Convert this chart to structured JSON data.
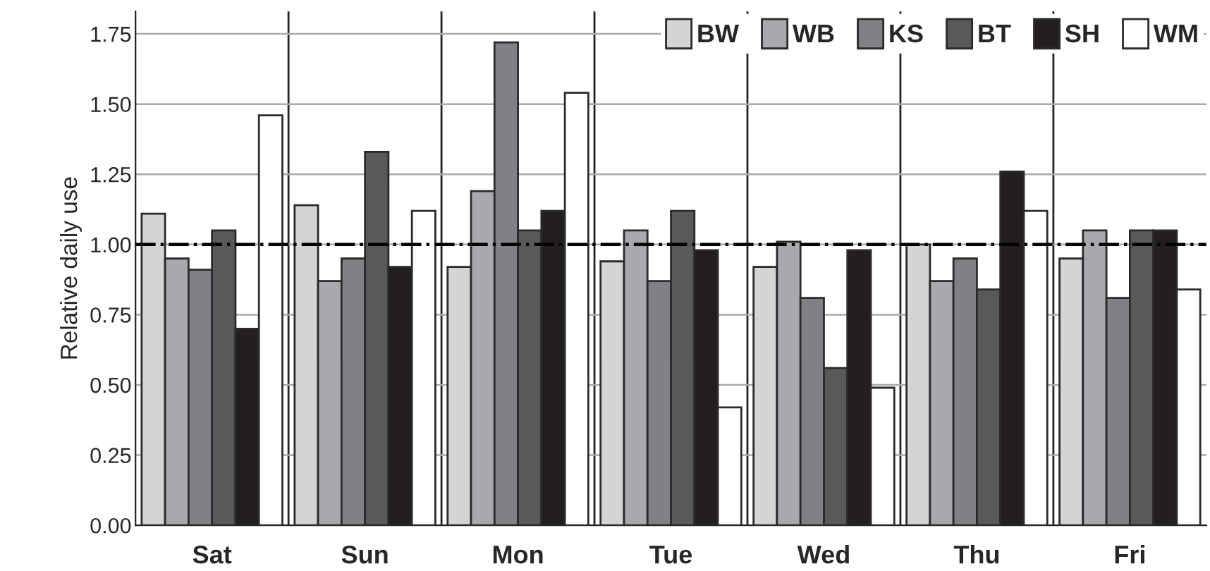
{
  "chart_data": {
    "type": "bar",
    "ylabel": "Relative daily use",
    "categories": [
      "Sat",
      "Sun",
      "Mon",
      "Tue",
      "Wed",
      "Thu",
      "Fri"
    ],
    "series": [
      {
        "name": "BW",
        "color": "#d4d4d6",
        "values": [
          1.11,
          1.14,
          0.92,
          0.94,
          0.92,
          1.0,
          0.95
        ]
      },
      {
        "name": "WB",
        "color": "#a8a9ac",
        "values": [
          0.95,
          0.87,
          1.19,
          1.05,
          1.01,
          0.87,
          1.05
        ]
      },
      {
        "name": "KS",
        "color": "#808184",
        "values": [
          0.91,
          0.95,
          1.72,
          0.87,
          0.81,
          0.95,
          0.81
        ]
      },
      {
        "name": "BT",
        "color": "#58595b",
        "values": [
          1.05,
          1.33,
          1.05,
          1.12,
          0.56,
          0.84,
          1.05
        ]
      },
      {
        "name": "SH",
        "color": "#231f20",
        "values": [
          0.7,
          0.92,
          1.12,
          0.98,
          0.98,
          1.26,
          1.05
        ]
      },
      {
        "name": "WM",
        "color": "#ffffff",
        "values": [
          1.46,
          1.12,
          1.54,
          0.42,
          0.49,
          1.12,
          0.84
        ]
      }
    ],
    "ylim": [
      0,
      1.83
    ],
    "yticks": [
      {
        "value": 0,
        "label": "0.00"
      },
      {
        "value": 0.25,
        "label": "0.25"
      },
      {
        "value": 0.5,
        "label": "0.50"
      },
      {
        "value": 0.75,
        "label": "0.75"
      },
      {
        "value": 1,
        "label": "1.00"
      },
      {
        "value": 1.25,
        "label": "1.25"
      },
      {
        "value": 1.5,
        "label": "1.50"
      },
      {
        "value": 1.75,
        "label": "1.75"
      }
    ],
    "ref_lines": [
      {
        "axis": "y",
        "value": 1,
        "color": "#000000",
        "line_style": "dashdot"
      }
    ],
    "grid": "y",
    "legend": "top right"
  }
}
